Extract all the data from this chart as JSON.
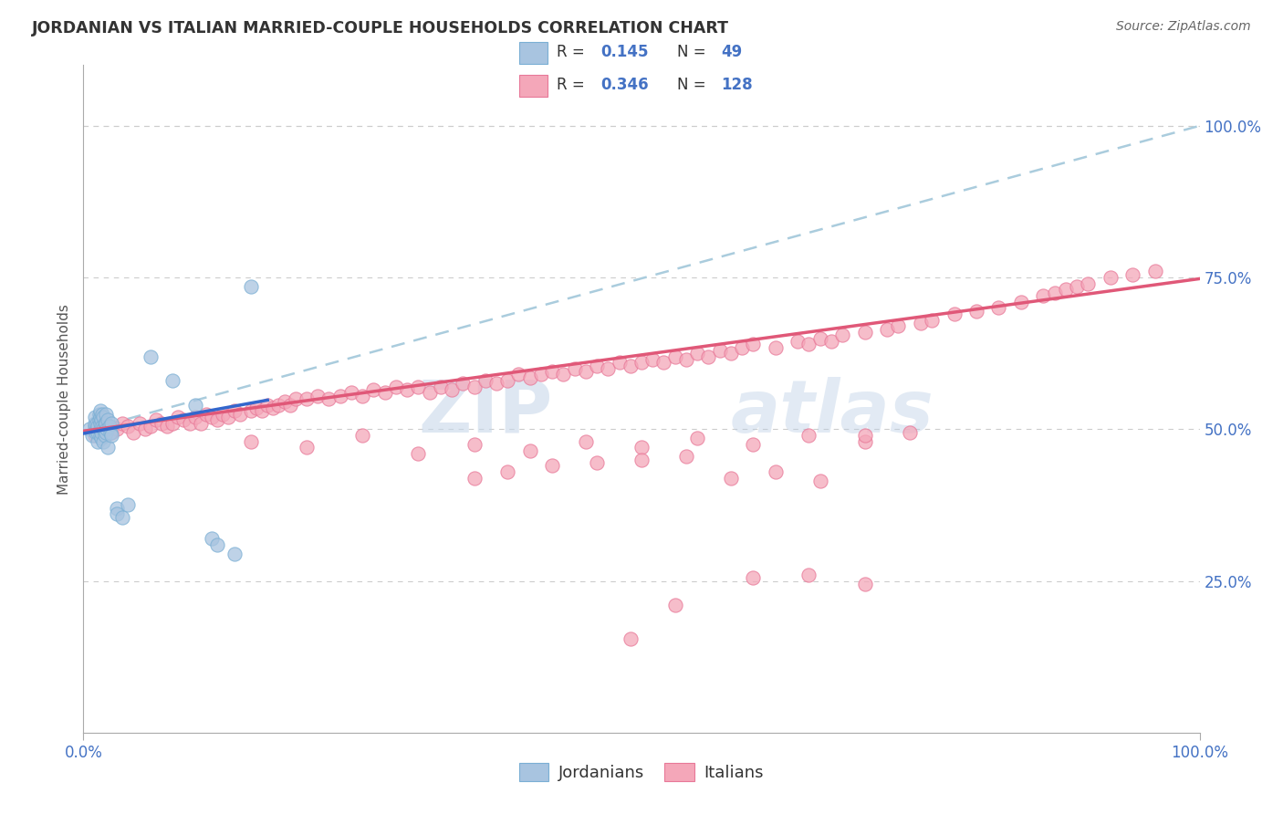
{
  "title": "JORDANIAN VS ITALIAN MARRIED-COUPLE HOUSEHOLDS CORRELATION CHART",
  "source": "Source: ZipAtlas.com",
  "ylabel": "Married-couple Households",
  "xlim": [
    0.0,
    1.0
  ],
  "ylim": [
    0.0,
    1.1
  ],
  "xtick_positions": [
    0.0,
    1.0
  ],
  "xtick_labels": [
    "0.0%",
    "100.0%"
  ],
  "ytick_positions": [
    0.25,
    0.5,
    0.75,
    1.0
  ],
  "ytick_labels": [
    "25.0%",
    "50.0%",
    "75.0%",
    "100.0%"
  ],
  "jordan_color": "#a8c4e0",
  "jordan_edge_color": "#7aafd4",
  "italian_color": "#f4a7b9",
  "italian_edge_color": "#e87898",
  "jordan_line_color": "#3366cc",
  "italian_line_color": "#e05878",
  "dashed_line_color": "#aaccdd",
  "background_color": "#ffffff",
  "watermark_color": "#c8d8ea",
  "tick_color": "#4472c4",
  "grid_color": "#cccccc",
  "spine_color": "#aaaaaa",
  "title_color": "#333333",
  "source_color": "#666666",
  "ylabel_color": "#555555",
  "legend_box_color": "#eeeeee",
  "legend_r_color": "#333333",
  "legend_n_color": "#333333",
  "legend_val_color": "#4472c4",
  "jordan_trend_x0": 0.0,
  "jordan_trend_x1": 0.165,
  "jordan_trend_y0": 0.493,
  "jordan_trend_y1": 0.548,
  "italian_trend_x0": 0.0,
  "italian_trend_x1": 1.0,
  "italian_trend_y0": 0.497,
  "italian_trend_y1": 0.748,
  "dashed_trend_x0": 0.0,
  "dashed_trend_x1": 1.0,
  "dashed_trend_y0": 0.497,
  "dashed_trend_y1": 1.0,
  "jordan_x": [
    0.005,
    0.008,
    0.01,
    0.01,
    0.01,
    0.011,
    0.012,
    0.012,
    0.013,
    0.013,
    0.013,
    0.014,
    0.014,
    0.015,
    0.015,
    0.015,
    0.015,
    0.015,
    0.016,
    0.016,
    0.016,
    0.017,
    0.017,
    0.018,
    0.018,
    0.018,
    0.019,
    0.019,
    0.02,
    0.02,
    0.02,
    0.021,
    0.022,
    0.022,
    0.023,
    0.024,
    0.025,
    0.025,
    0.03,
    0.03,
    0.035,
    0.04,
    0.06,
    0.08,
    0.1,
    0.115,
    0.12,
    0.135,
    0.15
  ],
  "jordan_y": [
    0.5,
    0.49,
    0.505,
    0.51,
    0.52,
    0.495,
    0.5,
    0.51,
    0.48,
    0.495,
    0.505,
    0.515,
    0.525,
    0.49,
    0.5,
    0.51,
    0.52,
    0.53,
    0.485,
    0.495,
    0.515,
    0.505,
    0.525,
    0.48,
    0.5,
    0.52,
    0.49,
    0.51,
    0.495,
    0.51,
    0.525,
    0.5,
    0.515,
    0.47,
    0.505,
    0.495,
    0.51,
    0.49,
    0.37,
    0.36,
    0.355,
    0.375,
    0.62,
    0.58,
    0.54,
    0.32,
    0.31,
    0.295,
    0.735
  ],
  "italian_x": [
    0.01,
    0.015,
    0.02,
    0.025,
    0.03,
    0.035,
    0.04,
    0.045,
    0.05,
    0.055,
    0.06,
    0.065,
    0.07,
    0.075,
    0.08,
    0.085,
    0.09,
    0.095,
    0.1,
    0.105,
    0.11,
    0.115,
    0.12,
    0.125,
    0.13,
    0.135,
    0.14,
    0.15,
    0.155,
    0.16,
    0.165,
    0.17,
    0.175,
    0.18,
    0.185,
    0.19,
    0.2,
    0.21,
    0.22,
    0.23,
    0.24,
    0.25,
    0.26,
    0.27,
    0.28,
    0.29,
    0.3,
    0.31,
    0.32,
    0.33,
    0.34,
    0.35,
    0.36,
    0.37,
    0.38,
    0.39,
    0.4,
    0.41,
    0.42,
    0.43,
    0.44,
    0.45,
    0.46,
    0.47,
    0.48,
    0.49,
    0.5,
    0.51,
    0.52,
    0.53,
    0.54,
    0.55,
    0.56,
    0.57,
    0.58,
    0.59,
    0.6,
    0.62,
    0.64,
    0.65,
    0.66,
    0.67,
    0.68,
    0.7,
    0.72,
    0.73,
    0.75,
    0.76,
    0.78,
    0.8,
    0.82,
    0.84,
    0.86,
    0.87,
    0.88,
    0.89,
    0.9,
    0.92,
    0.94,
    0.96,
    0.15,
    0.2,
    0.25,
    0.3,
    0.35,
    0.4,
    0.45,
    0.5,
    0.55,
    0.6,
    0.65,
    0.7,
    0.35,
    0.38,
    0.42,
    0.46,
    0.5,
    0.54,
    0.58,
    0.62,
    0.66,
    0.7,
    0.74,
    0.49,
    0.53,
    0.6,
    0.65,
    0.7
  ],
  "italian_y": [
    0.49,
    0.5,
    0.505,
    0.495,
    0.5,
    0.51,
    0.505,
    0.495,
    0.51,
    0.5,
    0.505,
    0.515,
    0.51,
    0.505,
    0.51,
    0.52,
    0.515,
    0.51,
    0.52,
    0.51,
    0.525,
    0.52,
    0.515,
    0.525,
    0.52,
    0.53,
    0.525,
    0.53,
    0.535,
    0.53,
    0.54,
    0.535,
    0.54,
    0.545,
    0.54,
    0.55,
    0.55,
    0.555,
    0.55,
    0.555,
    0.56,
    0.555,
    0.565,
    0.56,
    0.57,
    0.565,
    0.57,
    0.56,
    0.57,
    0.565,
    0.575,
    0.57,
    0.58,
    0.575,
    0.58,
    0.59,
    0.585,
    0.59,
    0.595,
    0.59,
    0.6,
    0.595,
    0.605,
    0.6,
    0.61,
    0.605,
    0.61,
    0.615,
    0.61,
    0.62,
    0.615,
    0.625,
    0.62,
    0.63,
    0.625,
    0.635,
    0.64,
    0.635,
    0.645,
    0.64,
    0.65,
    0.645,
    0.655,
    0.66,
    0.665,
    0.67,
    0.675,
    0.68,
    0.69,
    0.695,
    0.7,
    0.71,
    0.72,
    0.725,
    0.73,
    0.735,
    0.74,
    0.75,
    0.755,
    0.76,
    0.48,
    0.47,
    0.49,
    0.46,
    0.475,
    0.465,
    0.48,
    0.47,
    0.485,
    0.475,
    0.49,
    0.48,
    0.42,
    0.43,
    0.44,
    0.445,
    0.45,
    0.455,
    0.42,
    0.43,
    0.415,
    0.49,
    0.495,
    0.155,
    0.21,
    0.255,
    0.26,
    0.245
  ]
}
